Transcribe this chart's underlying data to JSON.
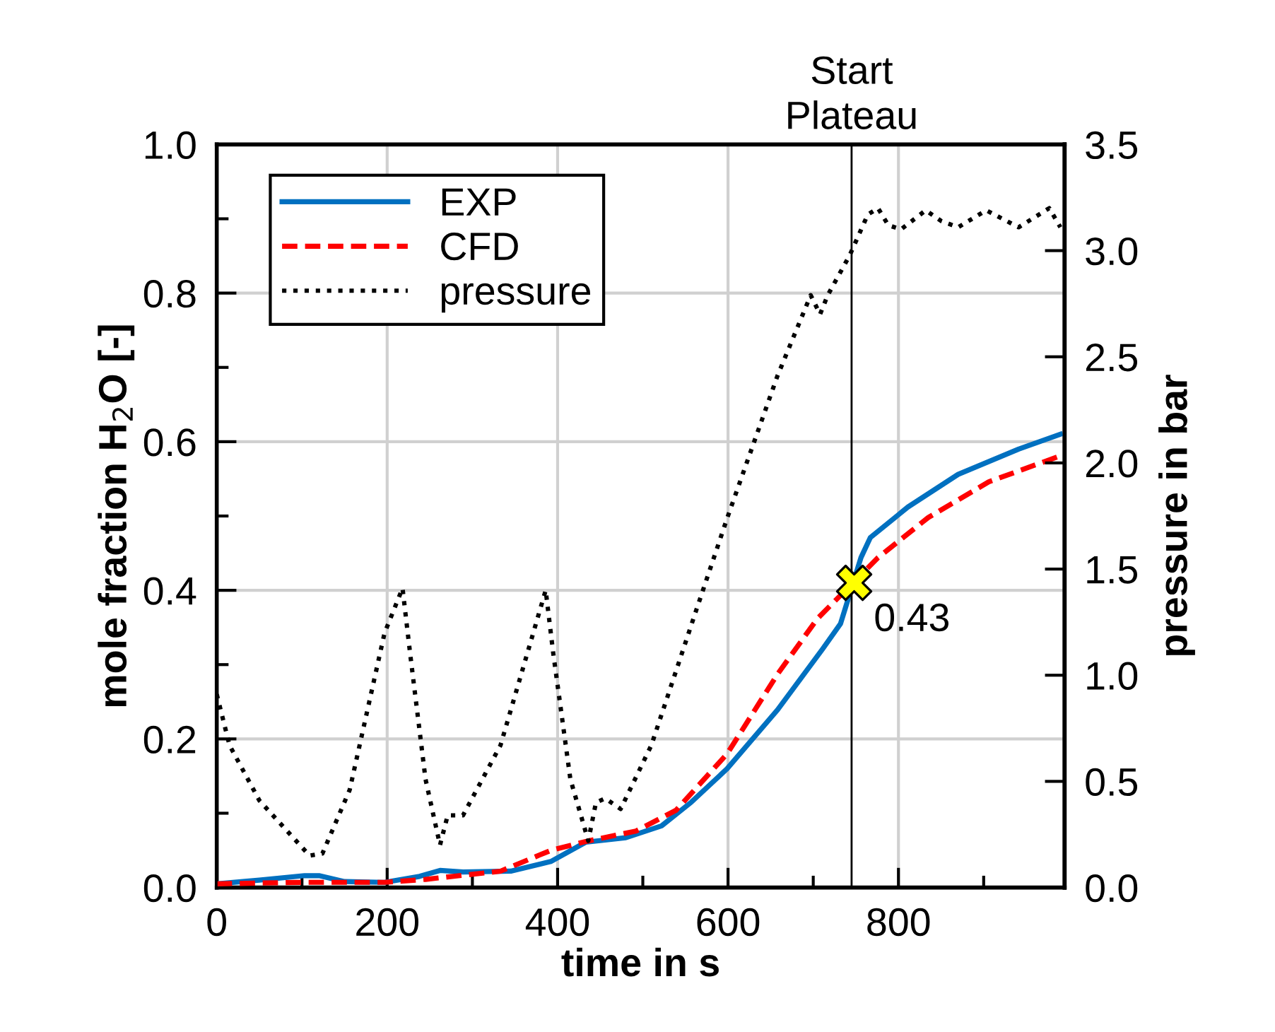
{
  "chart_data": {
    "type": "line",
    "xlabel": "time in s",
    "ylabel": "mole fraction H$_{2}$O [-]",
    "y2label": "pressure in bar",
    "xlim": [
      0,
      995
    ],
    "xticks": [
      0,
      {
        "value": 100,
        "label": null
      },
      200,
      {
        "value": 300,
        "label": null
      },
      400,
      {
        "value": 500,
        "label": null
      },
      600,
      {
        "value": 700,
        "label": null
      },
      800,
      {
        "value": 900,
        "label": null
      }
    ],
    "ylim": [
      0,
      1
    ],
    "yticks": [
      {
        "value": 0,
        "label": "0.0"
      },
      {
        "value": 0.1,
        "label": null
      },
      0.2,
      {
        "value": 0.3,
        "label": null
      },
      0.4,
      {
        "value": 0.5,
        "label": null
      },
      0.6,
      {
        "value": 0.7,
        "label": null
      },
      0.8,
      {
        "value": 0.9,
        "label": null
      },
      {
        "value": 1,
        "label": "1.0"
      }
    ],
    "y2lim": [
      0,
      3.5
    ],
    "y2ticks": [
      {
        "value": 0,
        "label": "0.0"
      },
      0.5,
      {
        "value": 1,
        "label": "1.0"
      },
      1.5,
      {
        "value": 2,
        "label": "2.0"
      },
      2.5,
      {
        "value": 3,
        "label": "3.0"
      },
      3.5
    ],
    "grid": true,
    "legend": "top left",
    "ref_lines": [
      {
        "axis": "x",
        "value": 745,
        "label": "Start\nPlateau",
        "color": "#000000",
        "line_style": "solid"
      }
    ],
    "annotations": [
      {
        "text": "0.43",
        "x": 748,
        "y": 0.41
      }
    ],
    "series": [
      {
        "name": "EXP",
        "color": "#0070c0",
        "line_style": "solid",
        "x": [
          0,
          50,
          103,
          120,
          150,
          197,
          238,
          262,
          289,
          345,
          392,
          433,
          480,
          522,
          557,
          599,
          658,
          711,
          732,
          756,
          767,
          811,
          870,
          941,
          990
        ],
        "values": [
          0.005,
          0.01,
          0.016,
          0.016,
          0.008,
          0.007,
          0.015,
          0.023,
          0.021,
          0.022,
          0.035,
          0.061,
          0.067,
          0.083,
          0.115,
          0.16,
          0.239,
          0.321,
          0.355,
          0.444,
          0.471,
          0.512,
          0.556,
          0.59,
          0.61
        ]
      },
      {
        "name": "CFD",
        "color": "#ff0000",
        "line_style": "dashed",
        "x": [
          0,
          100,
          197,
          245,
          333,
          392,
          433,
          492,
          539,
          599,
          658,
          705,
          776,
          835,
          906,
          990
        ],
        "values": [
          0.005,
          0.007,
          0.007,
          0.011,
          0.022,
          0.05,
          0.062,
          0.076,
          0.104,
          0.18,
          0.287,
          0.362,
          0.444,
          0.498,
          0.546,
          0.581
        ]
      },
      {
        "name": "pressure",
        "color": "#000000",
        "line_style": "dotted",
        "axis": "y2",
        "x": [
          0,
          15,
          50,
          109,
          124,
          156,
          197,
          218,
          227,
          245,
          262,
          271,
          289,
          333,
          386,
          395,
          415,
          436,
          445,
          456,
          474,
          510,
          563,
          599,
          658,
          697,
          708,
          717,
          743,
          764,
          776,
          788,
          803,
          832,
          850,
          870,
          903,
          941,
          977,
          990
        ],
        "values": [
          0.91,
          0.67,
          0.41,
          0.15,
          0.16,
          0.46,
          1.2,
          1.41,
          1.1,
          0.51,
          0.2,
          0.34,
          0.34,
          0.67,
          1.4,
          1.1,
          0.51,
          0.22,
          0.4,
          0.42,
          0.37,
          0.67,
          1.31,
          1.74,
          2.41,
          2.79,
          2.7,
          2.79,
          2.98,
          3.17,
          3.2,
          3.12,
          3.1,
          3.19,
          3.14,
          3.11,
          3.19,
          3.11,
          3.2,
          3.11
        ]
      },
      {
        "type": "scatter",
        "color": "#ffff00",
        "marker": "cross",
        "x": [
          748
        ],
        "values": [
          0.41
        ]
      }
    ]
  }
}
